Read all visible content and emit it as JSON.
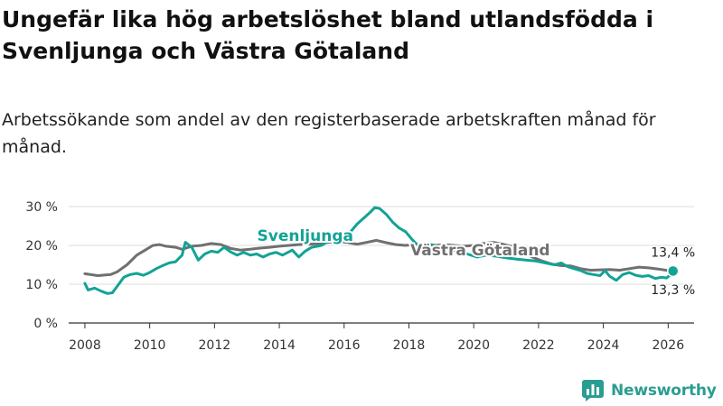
{
  "title": "Ungefär lika hög arbetslöshet bland utlandsfödda i Svenljunga och Västra Götaland",
  "subtitle": "Arbetssökande som andel av den registerbaserade arbetskraften månad för månad.",
  "brand": {
    "name": "Newsworthy",
    "color": "#2a9d92"
  },
  "chart_data": {
    "type": "line",
    "xlim": [
      2007.5,
      2026.8
    ],
    "ylim": [
      0,
      30
    ],
    "yticks": [
      0,
      10,
      20,
      30
    ],
    "ytick_labels": [
      "0 %",
      "10 %",
      "20 %",
      "30 %"
    ],
    "xticks": [
      2008,
      2010,
      2012,
      2014,
      2016,
      2018,
      2020,
      2022,
      2024,
      2026
    ],
    "xtick_labels": [
      "2008",
      "2010",
      "2012",
      "2014",
      "2016",
      "2018",
      "2020",
      "2022",
      "2024",
      "2026"
    ],
    "grid": true,
    "series": [
      {
        "name": "Västra Götaland",
        "color": "#707070",
        "end_label": "13,3 %",
        "points": [
          [
            2008.0,
            12.7
          ],
          [
            2008.4,
            12.2
          ],
          [
            2008.8,
            12.5
          ],
          [
            2009.0,
            13.2
          ],
          [
            2009.3,
            15.0
          ],
          [
            2009.6,
            17.5
          ],
          [
            2009.9,
            19.0
          ],
          [
            2010.1,
            20.0
          ],
          [
            2010.3,
            20.2
          ],
          [
            2010.5,
            19.8
          ],
          [
            2010.8,
            19.5
          ],
          [
            2011.0,
            19.0
          ],
          [
            2011.3,
            19.8
          ],
          [
            2011.6,
            20.0
          ],
          [
            2011.9,
            20.5
          ],
          [
            2012.2,
            20.2
          ],
          [
            2012.5,
            19.2
          ],
          [
            2012.8,
            18.8
          ],
          [
            2013.1,
            19.0
          ],
          [
            2013.4,
            19.3
          ],
          [
            2013.7,
            19.5
          ],
          [
            2014.0,
            19.8
          ],
          [
            2014.3,
            20.0
          ],
          [
            2014.6,
            20.2
          ],
          [
            2014.9,
            20.3
          ],
          [
            2015.2,
            20.5
          ],
          [
            2015.5,
            20.8
          ],
          [
            2015.8,
            21.0
          ],
          [
            2016.1,
            20.8
          ],
          [
            2016.4,
            20.3
          ],
          [
            2016.7,
            20.8
          ],
          [
            2017.0,
            21.3
          ],
          [
            2017.3,
            20.7
          ],
          [
            2017.6,
            20.2
          ],
          [
            2017.9,
            20.0
          ],
          [
            2018.2,
            20.3
          ],
          [
            2018.5,
            20.5
          ],
          [
            2018.8,
            20.0
          ],
          [
            2019.1,
            20.2
          ],
          [
            2019.4,
            20.0
          ],
          [
            2019.7,
            19.8
          ],
          [
            2020.0,
            20.0
          ],
          [
            2020.3,
            20.5
          ],
          [
            2020.6,
            20.8
          ],
          [
            2020.9,
            20.3
          ],
          [
            2021.2,
            19.7
          ],
          [
            2021.5,
            18.5
          ],
          [
            2021.8,
            17.0
          ],
          [
            2022.1,
            16.0
          ],
          [
            2022.4,
            15.2
          ],
          [
            2022.7,
            14.8
          ],
          [
            2023.0,
            14.7
          ],
          [
            2023.3,
            14.0
          ],
          [
            2023.6,
            13.6
          ],
          [
            2023.9,
            13.7
          ],
          [
            2024.2,
            13.8
          ],
          [
            2024.5,
            13.6
          ],
          [
            2024.8,
            14.0
          ],
          [
            2025.1,
            14.4
          ],
          [
            2025.4,
            14.2
          ],
          [
            2025.7,
            13.9
          ],
          [
            2026.0,
            13.5
          ],
          [
            2026.15,
            13.3
          ]
        ]
      },
      {
        "name": "Svenljunga",
        "color": "#12a396",
        "end_label": "13,4 %",
        "points": [
          [
            2008.0,
            10.2
          ],
          [
            2008.1,
            8.5
          ],
          [
            2008.3,
            9.0
          ],
          [
            2008.5,
            8.2
          ],
          [
            2008.7,
            7.6
          ],
          [
            2008.85,
            7.8
          ],
          [
            2009.0,
            9.5
          ],
          [
            2009.2,
            11.8
          ],
          [
            2009.4,
            12.5
          ],
          [
            2009.6,
            12.8
          ],
          [
            2009.8,
            12.3
          ],
          [
            2010.0,
            13.0
          ],
          [
            2010.2,
            14.0
          ],
          [
            2010.4,
            14.8
          ],
          [
            2010.6,
            15.5
          ],
          [
            2010.8,
            15.8
          ],
          [
            2011.0,
            17.5
          ],
          [
            2011.1,
            20.8
          ],
          [
            2011.3,
            19.5
          ],
          [
            2011.5,
            16.2
          ],
          [
            2011.7,
            17.8
          ],
          [
            2011.9,
            18.5
          ],
          [
            2012.1,
            18.2
          ],
          [
            2012.3,
            19.5
          ],
          [
            2012.5,
            18.3
          ],
          [
            2012.7,
            17.5
          ],
          [
            2012.9,
            18.2
          ],
          [
            2013.1,
            17.5
          ],
          [
            2013.3,
            17.8
          ],
          [
            2013.5,
            17.0
          ],
          [
            2013.7,
            17.8
          ],
          [
            2013.9,
            18.2
          ],
          [
            2014.1,
            17.5
          ],
          [
            2014.4,
            18.8
          ],
          [
            2014.6,
            17.0
          ],
          [
            2014.8,
            18.5
          ],
          [
            2015.0,
            19.5
          ],
          [
            2015.3,
            20.0
          ],
          [
            2015.6,
            21.5
          ],
          [
            2015.9,
            22.5
          ],
          [
            2016.2,
            23.5
          ],
          [
            2016.4,
            25.5
          ],
          [
            2016.6,
            27.0
          ],
          [
            2016.8,
            28.5
          ],
          [
            2016.95,
            29.8
          ],
          [
            2017.1,
            29.5
          ],
          [
            2017.3,
            28.0
          ],
          [
            2017.5,
            26.0
          ],
          [
            2017.7,
            24.5
          ],
          [
            2017.9,
            23.5
          ],
          [
            2018.1,
            21.5
          ],
          [
            2018.3,
            19.8
          ],
          [
            2018.6,
            20.5
          ],
          [
            2018.9,
            19.5
          ],
          [
            2019.2,
            19.0
          ],
          [
            2019.5,
            18.5
          ],
          [
            2019.8,
            17.8
          ],
          [
            2020.1,
            17.0
          ],
          [
            2020.4,
            17.5
          ],
          [
            2020.7,
            17.2
          ],
          [
            2021.0,
            16.8
          ],
          [
            2021.3,
            16.5
          ],
          [
            2021.6,
            16.2
          ],
          [
            2021.9,
            16.0
          ],
          [
            2022.2,
            15.5
          ],
          [
            2022.5,
            15.0
          ],
          [
            2022.7,
            15.5
          ],
          [
            2022.9,
            14.5
          ],
          [
            2023.1,
            14.0
          ],
          [
            2023.3,
            13.5
          ],
          [
            2023.5,
            12.8
          ],
          [
            2023.7,
            12.5
          ],
          [
            2023.9,
            12.2
          ],
          [
            2024.05,
            13.5
          ],
          [
            2024.2,
            12.0
          ],
          [
            2024.4,
            11.0
          ],
          [
            2024.6,
            12.5
          ],
          [
            2024.8,
            13.0
          ],
          [
            2025.0,
            12.3
          ],
          [
            2025.2,
            12.0
          ],
          [
            2025.4,
            12.2
          ],
          [
            2025.6,
            11.5
          ],
          [
            2025.8,
            11.8
          ],
          [
            2025.95,
            11.6
          ],
          [
            2026.05,
            12.3
          ],
          [
            2026.15,
            13.4
          ]
        ]
      }
    ],
    "annotations": [
      {
        "text": "Svenljunga",
        "series": "Svenljunga"
      },
      {
        "text": "Västra Götaland",
        "series": "Västra Götaland"
      }
    ]
  }
}
